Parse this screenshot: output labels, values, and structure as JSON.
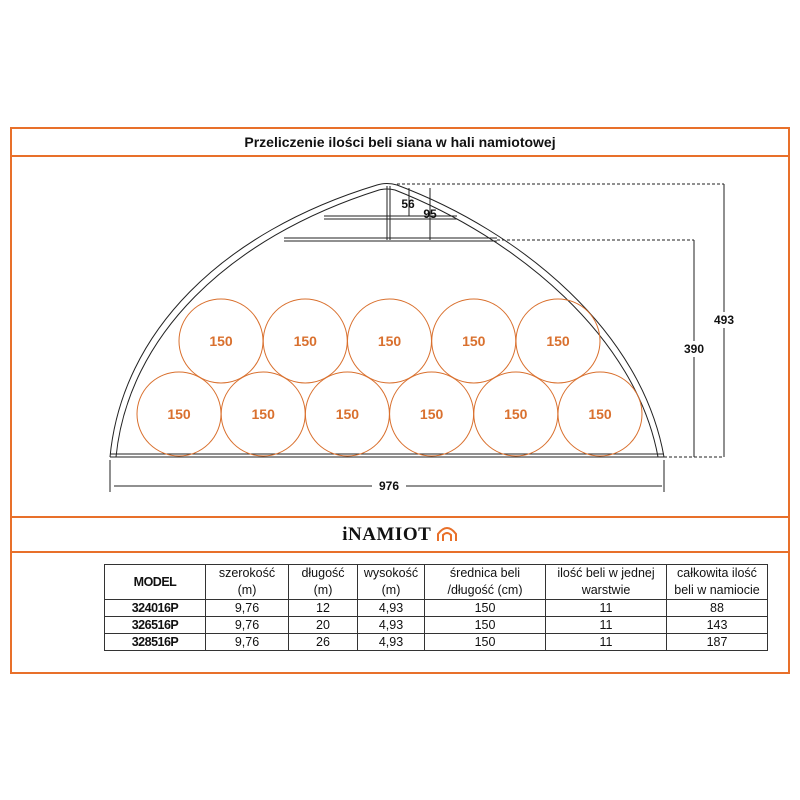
{
  "title": "Przeliczenie ilości beli siana w hali namiotowej",
  "drawing": {
    "bale_label": "150",
    "top_row_count": 5,
    "bottom_row_count": 6,
    "dim_total_height": "493",
    "dim_side_height": "390",
    "dim_width": "976",
    "dim_upper_56": "56",
    "dim_upper_95": "95",
    "bale_color": "#d9702e",
    "line_color": "#222222"
  },
  "logo": {
    "text": "iNAMIOT",
    "icon": "tent-icon"
  },
  "accent_color": "#e8702a",
  "table": {
    "headers": [
      [
        "MODEL"
      ],
      [
        "szerokość",
        "(m)"
      ],
      [
        "długość",
        "(m)"
      ],
      [
        "wysokość",
        "(m)"
      ],
      [
        "średnica beli",
        "/długość (cm)"
      ],
      [
        "ilość beli w jednej",
        "warstwie"
      ],
      [
        "całkowita ilość",
        "beli w namiocie"
      ]
    ],
    "rows": [
      [
        "324016P",
        "9,76",
        "12",
        "4,93",
        "150",
        "11",
        "88"
      ],
      [
        "326516P",
        "9,76",
        "20",
        "4,93",
        "150",
        "11",
        "143"
      ],
      [
        "328516P",
        "9,76",
        "26",
        "4,93",
        "150",
        "11",
        "187"
      ]
    ]
  }
}
